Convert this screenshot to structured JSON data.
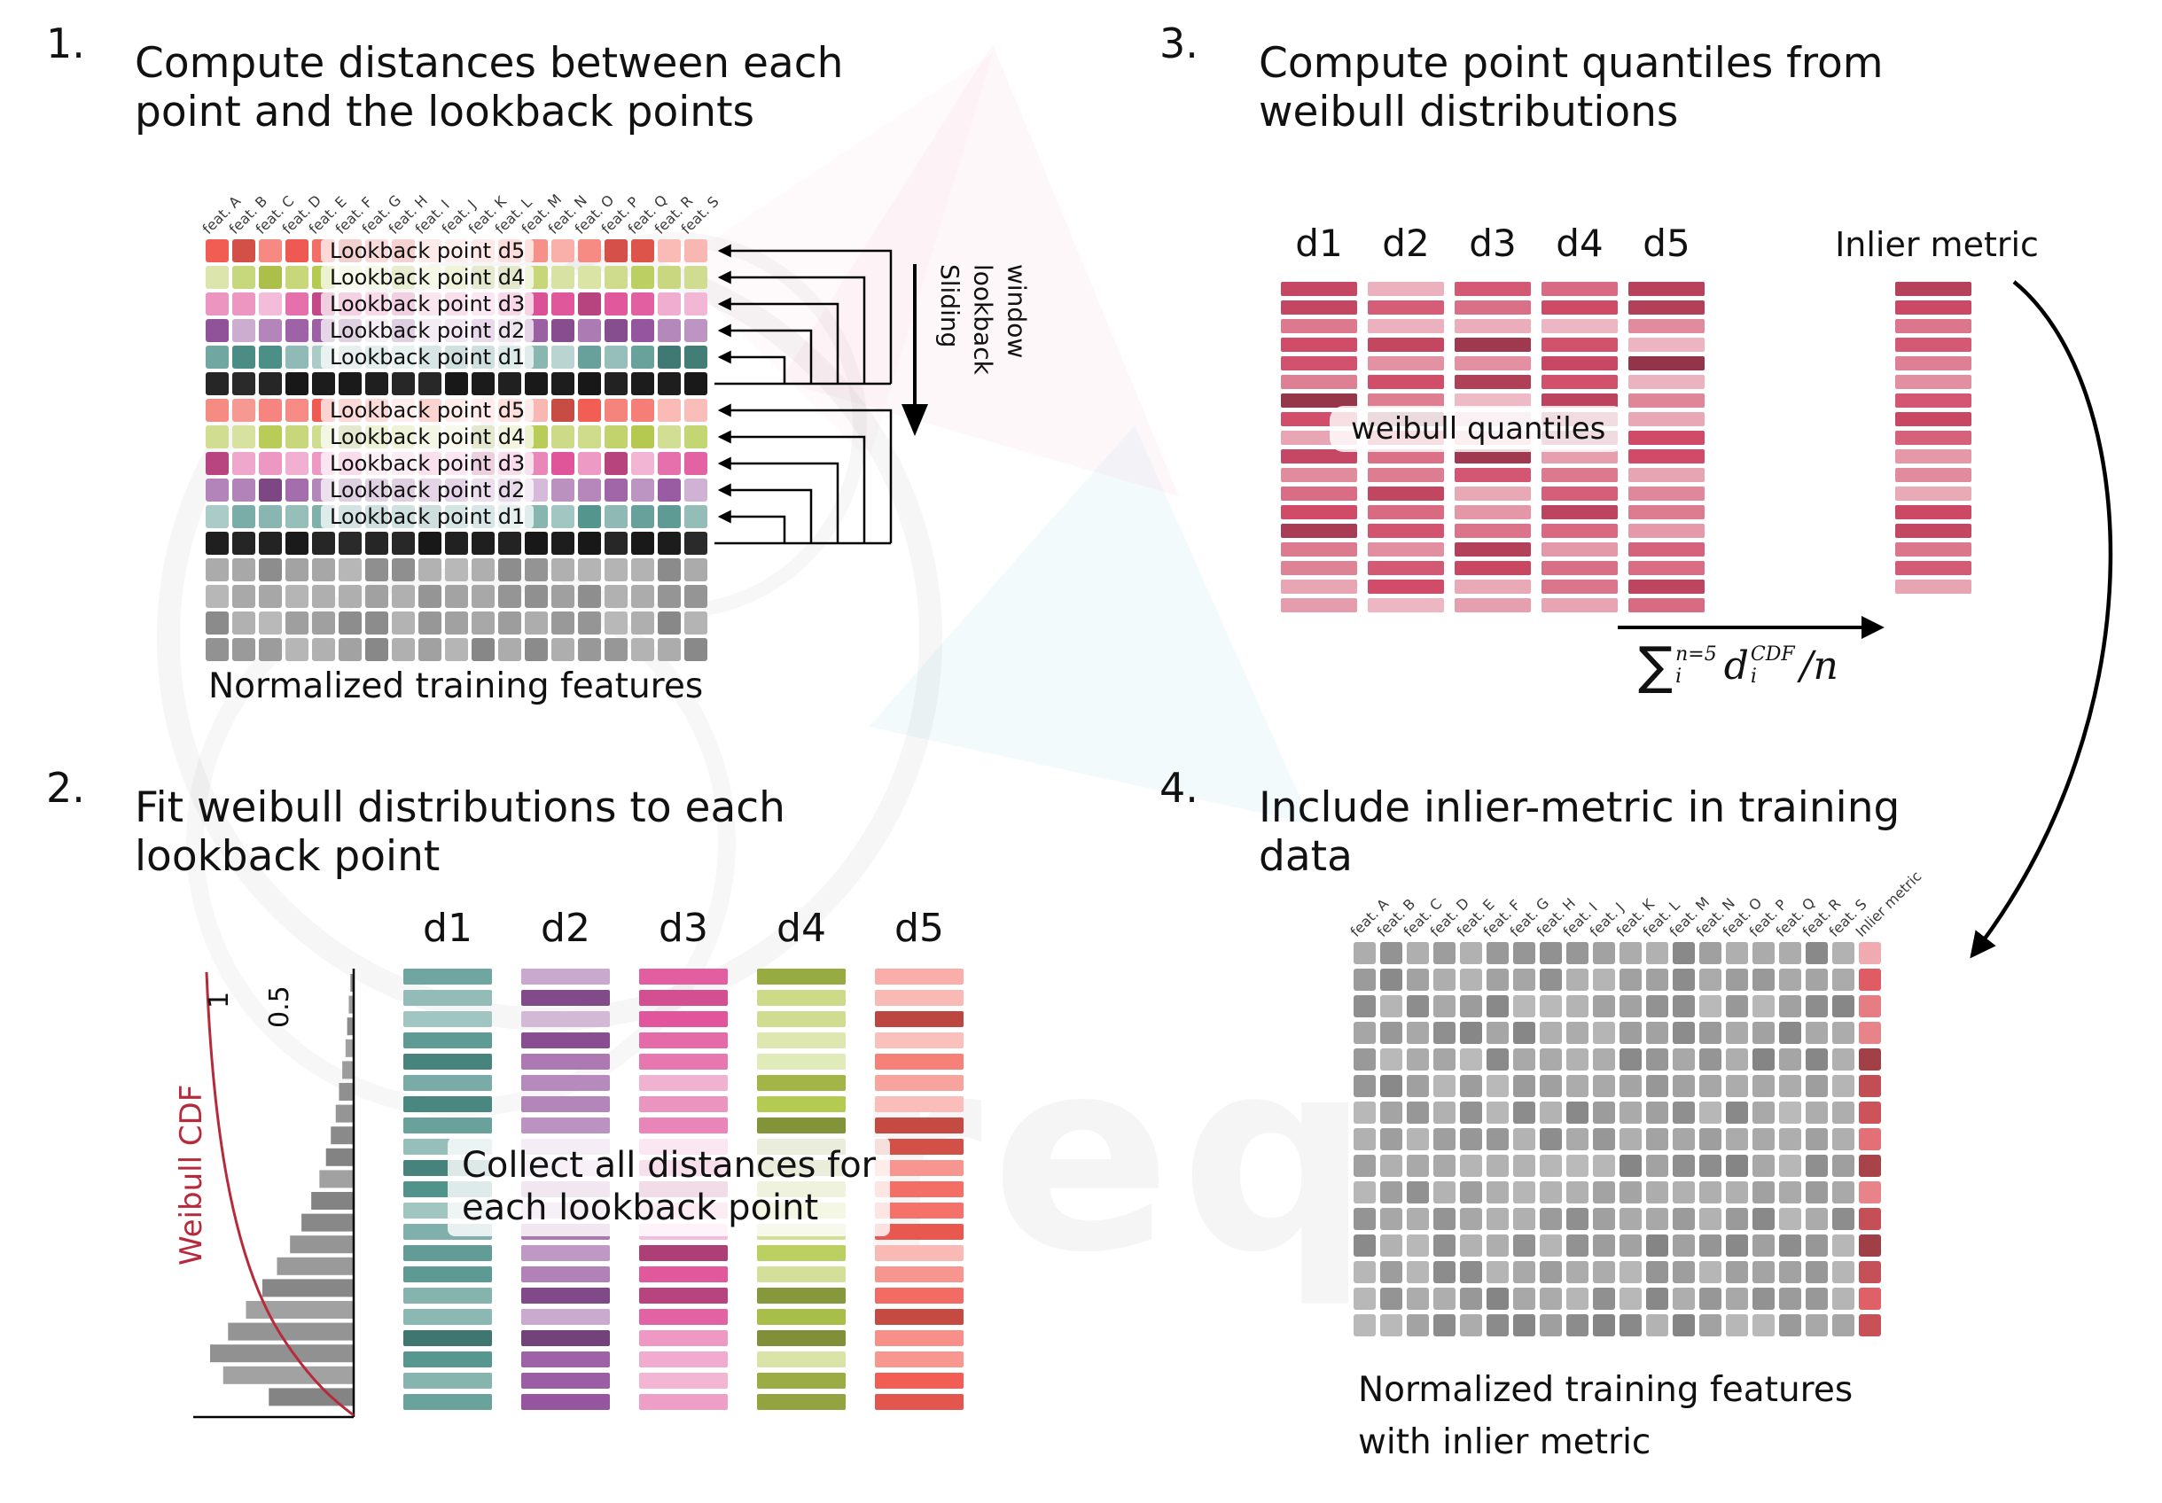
{
  "panel1": {
    "number": "1.",
    "title": [
      "Compute distances between each",
      "point and the lookback points"
    ],
    "features": [
      "feat. A",
      "feat. B",
      "feat. C",
      "feat. D",
      "feat. E",
      "feat. F",
      "feat. G",
      "feat. H",
      "feat. I",
      "feat. J",
      "feat. K",
      "feat. L",
      "feat. M",
      "feat. N",
      "feat. O",
      "feat. P",
      "feat. Q",
      "feat. R",
      "feat. S"
    ],
    "row_pattern": [
      "d5",
      "d4",
      "d3",
      "d2",
      "d1",
      "black",
      "d5",
      "d4",
      "d3",
      "d2",
      "d1",
      "black",
      "gray",
      "gray",
      "gray",
      "gray"
    ],
    "lookback_labels": [
      "Lookback point d5",
      "Lookback point d4",
      "Lookback point d3",
      "Lookback point d2",
      "Lookback point d1"
    ],
    "lookback_group_rows": [
      0,
      6
    ],
    "sliding_label": [
      "Sliding",
      "lookback",
      "window"
    ],
    "caption": "Normalized training features"
  },
  "panel2": {
    "number": "2.",
    "title": [
      "Fit weibull distributions to each",
      "lookback point"
    ],
    "columns": [
      {
        "label": "d1",
        "color": "d1"
      },
      {
        "label": "d2",
        "color": "d2"
      },
      {
        "label": "d3",
        "color": "d3"
      },
      {
        "label": "d4",
        "color": "d4"
      },
      {
        "label": "d5",
        "color": "d5"
      }
    ],
    "bars_per_column": 21,
    "overlay": [
      "Collect all distances for",
      "each lookback point"
    ],
    "hist": {
      "ylabel": "Weibull CDF",
      "ticks": [
        "1",
        "0.5"
      ],
      "values": [
        2,
        3,
        4,
        5,
        7,
        9,
        11,
        14,
        17,
        21,
        26,
        32,
        39,
        47,
        56,
        66,
        77,
        88,
        80,
        52
      ]
    }
  },
  "panel3": {
    "number": "3.",
    "title": [
      "Compute point quantiles from",
      "weibull distributions"
    ],
    "columns": [
      "d1",
      "d2",
      "d3",
      "d4",
      "d5"
    ],
    "bars_per_column": 18,
    "inlier_label": "Inlier metric",
    "inlier_bars": 17,
    "overlay": "weibull quantiles",
    "formula": {
      "sum": "∑",
      "sum_sup": "n=5",
      "sum_sub": "i",
      "var": "d",
      "var_sup": "CDF",
      "var_sub": "i",
      "tail": "/n"
    }
  },
  "panel4": {
    "number": "4.",
    "title": [
      "Include inlier-metric in training",
      "data"
    ],
    "features": [
      "feat. A",
      "feat. B",
      "feat. C",
      "feat. D",
      "feat. E",
      "feat. F",
      "feat. G",
      "feat. H",
      "feat. I",
      "feat. J",
      "feat. K",
      "feat. L",
      "feat. M",
      "feat. N",
      "feat. O",
      "feat. P",
      "feat. Q",
      "feat. R",
      "feat. S"
    ],
    "inlier_label": "Inlier metric",
    "rows": 15,
    "caption": [
      "Normalized training features",
      "with inlier metric"
    ]
  },
  "watermark": {
    "text": "req"
  },
  "colors": {
    "d1": "#4d9189",
    "d2": "#96569f",
    "d3": "#e0539a",
    "d4": "#b4c94e",
    "d5": "#f25c52",
    "black": "#181818",
    "gray": "#9c9c9c",
    "quantile": "#d04b68",
    "inlier4": "#df5a62",
    "accent_red": "#b62b3c",
    "line": "#000000"
  }
}
